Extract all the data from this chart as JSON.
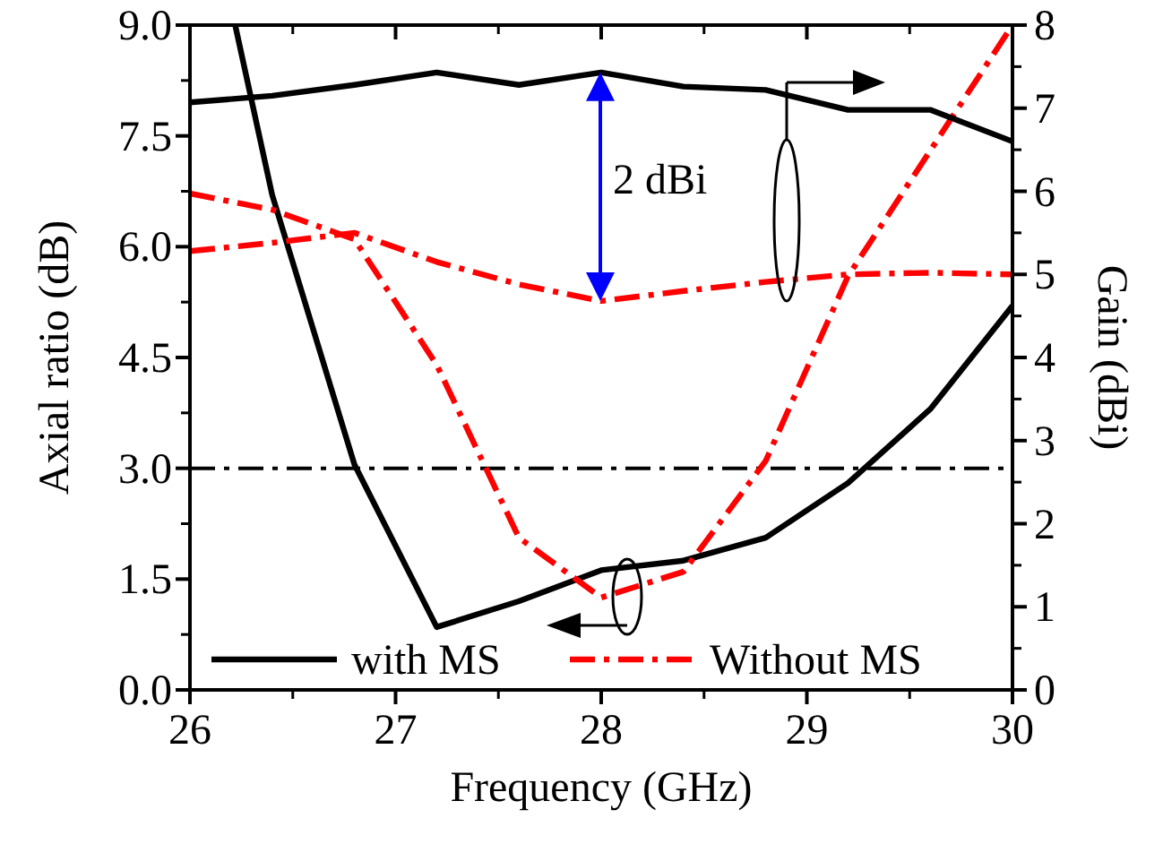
{
  "chart_data": {
    "type": "line",
    "xlabel": "Frequency (GHz)",
    "ylabel": "Axial ratio (dB)",
    "y2label": "Gain (dBi)",
    "xlim": [
      26,
      30
    ],
    "xticks": [
      26,
      27,
      28,
      29,
      30
    ],
    "ylim": [
      0,
      9
    ],
    "yticks": [
      {
        "value": 0,
        "label": "0.0"
      },
      {
        "value": 1.5,
        "label": "1.5"
      },
      {
        "value": 3,
        "label": "3.0"
      },
      {
        "value": 4.5,
        "label": "4.5"
      },
      {
        "value": 6,
        "label": "6.0"
      },
      {
        "value": 7.5,
        "label": "7.5"
      },
      {
        "value": 9,
        "label": "9.0"
      }
    ],
    "y2lim": [
      0,
      8
    ],
    "y2ticks": [
      0,
      1,
      2,
      3,
      4,
      5,
      6,
      7,
      8
    ],
    "series": [
      {
        "name": "with MS",
        "color": "#000000",
        "line_style": "solid",
        "x": [
          26.22,
          26.4,
          26.8,
          27.2,
          27.6,
          28,
          28.4,
          28.8,
          29.2,
          29.6,
          30
        ],
        "values": [
          9.0,
          6.7,
          3.05,
          0.85,
          1.2,
          1.62,
          1.75,
          2.06,
          2.8,
          3.8,
          5.2
        ]
      },
      {
        "name": "Without MS",
        "color": "#ff0000",
        "line_style": "dashed",
        "x": [
          26,
          26.4,
          26.8,
          27.2,
          27.6,
          28,
          28.4,
          28.8,
          29.2,
          29.6,
          30
        ],
        "values": [
          6.72,
          6.5,
          6.1,
          4.4,
          2.06,
          1.25,
          1.6,
          3.1,
          5.6,
          7.3,
          9.0
        ]
      },
      {
        "color": "#000000",
        "line_style": "solid",
        "axis": "y2",
        "x": [
          26,
          26.4,
          26.8,
          27.2,
          27.6,
          28,
          28.4,
          28.8,
          29.2,
          29.6,
          30
        ],
        "values": [
          7.07,
          7.15,
          7.28,
          7.43,
          7.28,
          7.43,
          7.26,
          7.22,
          6.98,
          6.98,
          6.6
        ]
      },
      {
        "color": "#ff0000",
        "line_style": "dashed",
        "axis": "y2",
        "x": [
          26,
          26.4,
          26.8,
          27.2,
          27.6,
          28,
          28.4,
          28.8,
          29.2,
          29.6,
          30
        ],
        "values": [
          5.28,
          5.38,
          5.5,
          5.15,
          4.88,
          4.68,
          4.8,
          4.91,
          5.0,
          5.02,
          5.0
        ]
      }
    ],
    "ref_lines": [
      {
        "axis": "y",
        "value": 3,
        "color": "#000000",
        "line_style": "dashed"
      }
    ],
    "annotations": [
      "2 dBi"
    ],
    "legend": "bottom"
  }
}
